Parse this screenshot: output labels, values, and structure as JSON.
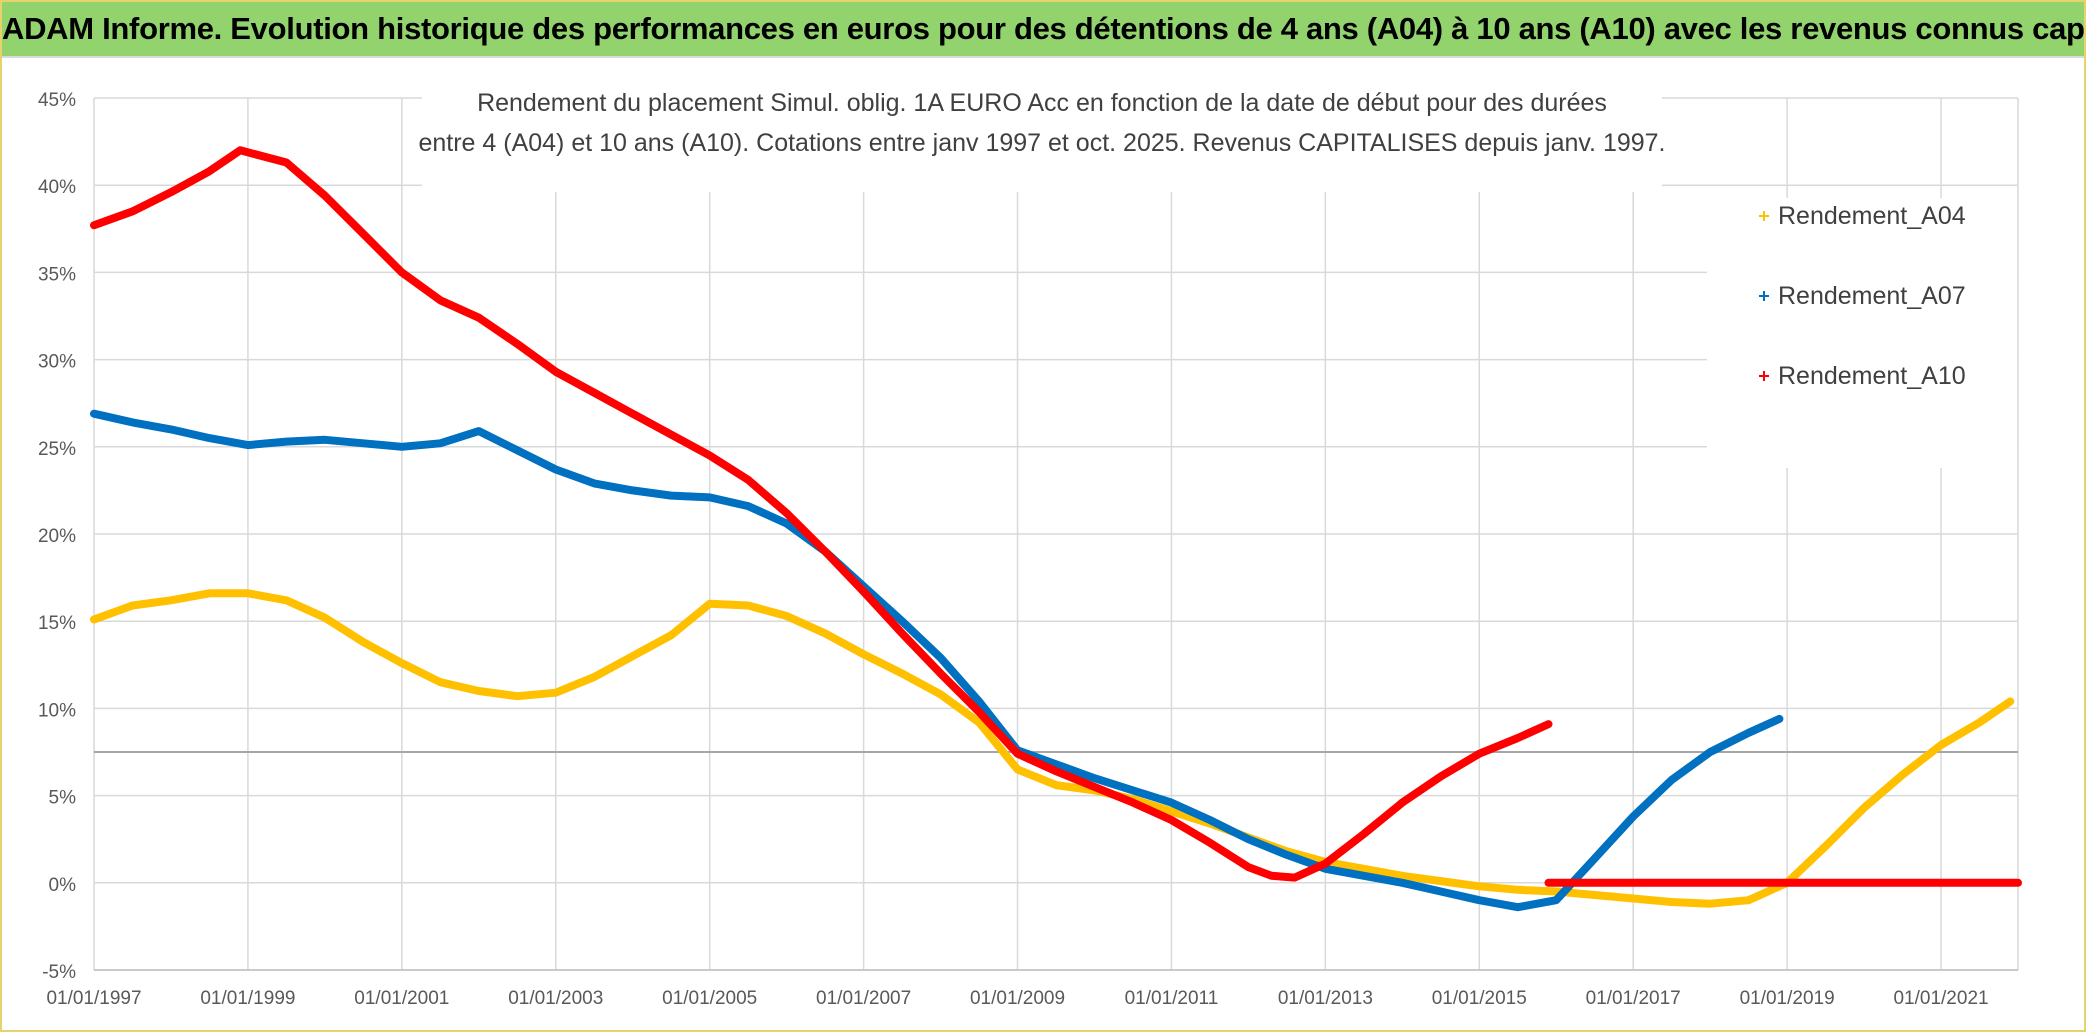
{
  "header": {
    "banner_title": "ADAM Informe. Evolution historique des performances en euros pour des détentions de 4 ans (A04) à 10 ans (A10) avec les revenus connus capitalisés"
  },
  "chart_data": {
    "type": "line",
    "title_line1": "Rendement du placement Simul. oblig. 1A EURO Acc en fonction de la date de début pour des durées",
    "title_line2": "entre 4 (A04) et 10 ans (A10). Cotations entre janv 1997 et oct. 2025. Revenus CAPITALISES depuis janv. 1997.",
    "xlabel": "",
    "ylabel": "",
    "xlim": [
      1997.0,
      2022.0
    ],
    "ylim": [
      -5,
      45
    ],
    "yticks": [
      -5,
      0,
      5,
      10,
      15,
      20,
      25,
      30,
      35,
      40,
      45
    ],
    "ytick_labels": [
      "-5%",
      "0%",
      "5%",
      "10%",
      "15%",
      "20%",
      "25%",
      "30%",
      "35%",
      "40%",
      "45%"
    ],
    "xticks": [
      1997,
      1999,
      2001,
      2003,
      2005,
      2007,
      2009,
      2011,
      2013,
      2015,
      2017,
      2019,
      2021
    ],
    "xtick_labels": [
      "01/01/1997",
      "01/01/1999",
      "01/01/2001",
      "01/01/2003",
      "01/01/2005",
      "01/01/2007",
      "01/01/2009",
      "01/01/2011",
      "01/01/2013",
      "01/01/2015",
      "01/01/2017",
      "01/01/2019",
      "01/01/2021"
    ],
    "grid": true,
    "reference_line": 7.5,
    "legend_position": "right",
    "series": [
      {
        "name": "Rendement_A04",
        "color": "#ffc000",
        "x": [
          1997.0,
          1997.5,
          1998.0,
          1998.5,
          1999.0,
          1999.5,
          2000.0,
          2000.5,
          2001.0,
          2001.5,
          2002.0,
          2002.5,
          2003.0,
          2003.5,
          2004.0,
          2004.5,
          2005.0,
          2005.5,
          2006.0,
          2006.5,
          2007.0,
          2007.5,
          2008.0,
          2008.5,
          2009.0,
          2009.5,
          2010.0,
          2010.5,
          2011.0,
          2011.5,
          2012.0,
          2012.5,
          2013.0,
          2013.5,
          2014.0,
          2014.5,
          2015.0,
          2015.5,
          2016.0,
          2016.5,
          2017.0,
          2017.5,
          2018.0,
          2018.5,
          2019.0,
          2019.5,
          2020.0,
          2020.5,
          2021.0,
          2021.5,
          2021.9
        ],
        "values": [
          15.1,
          15.9,
          16.2,
          16.6,
          16.6,
          16.2,
          15.2,
          13.8,
          12.6,
          11.5,
          11.0,
          10.7,
          10.9,
          11.8,
          13.0,
          14.2,
          16.0,
          15.9,
          15.3,
          14.3,
          13.1,
          12.0,
          10.8,
          9.2,
          6.5,
          5.6,
          5.3,
          4.8,
          4.1,
          3.4,
          2.6,
          1.8,
          1.2,
          0.8,
          0.4,
          0.1,
          -0.2,
          -0.4,
          -0.5,
          -0.7,
          -0.9,
          -1.1,
          -1.2,
          -1.0,
          0.0,
          2.1,
          4.3,
          6.2,
          7.9,
          9.2,
          10.4
        ]
      },
      {
        "name": "Rendement_A07",
        "color": "#0070c0",
        "x": [
          1997.0,
          1997.5,
          1998.0,
          1998.5,
          1999.0,
          1999.5,
          2000.0,
          2000.5,
          2001.0,
          2001.5,
          2002.0,
          2002.5,
          2003.0,
          2003.5,
          2004.0,
          2004.5,
          2005.0,
          2005.5,
          2006.0,
          2006.5,
          2007.0,
          2007.5,
          2008.0,
          2008.5,
          2009.0,
          2009.5,
          2010.0,
          2010.5,
          2011.0,
          2011.5,
          2012.0,
          2012.5,
          2013.0,
          2013.5,
          2014.0,
          2014.5,
          2015.0,
          2015.5,
          2016.0,
          2016.5,
          2017.0,
          2017.5,
          2018.0,
          2018.5,
          2018.9
        ],
        "values": [
          26.9,
          26.4,
          26.0,
          25.5,
          25.1,
          25.3,
          25.4,
          25.2,
          25.0,
          25.2,
          25.9,
          24.8,
          23.7,
          22.9,
          22.5,
          22.2,
          22.1,
          21.6,
          20.6,
          19.0,
          17.0,
          15.0,
          12.9,
          10.4,
          7.6,
          6.8,
          6.0,
          5.3,
          4.6,
          3.6,
          2.5,
          1.6,
          0.8,
          0.4,
          0.0,
          -0.5,
          -1.0,
          -1.4,
          -1.0,
          1.4,
          3.8,
          5.9,
          7.5,
          8.6,
          9.4
        ]
      },
      {
        "name": "Rendement_A10",
        "color": "#ff0000",
        "x": [
          1997.0,
          1997.5,
          1998.0,
          1998.5,
          1998.9,
          1999.5,
          2000.0,
          2000.5,
          2001.0,
          2001.5,
          2002.0,
          2002.5,
          2003.0,
          2003.5,
          2004.0,
          2004.5,
          2005.0,
          2005.5,
          2006.0,
          2006.5,
          2007.0,
          2007.5,
          2008.0,
          2008.5,
          2009.0,
          2009.5,
          2010.0,
          2010.5,
          2011.0,
          2011.5,
          2012.0,
          2012.3,
          2012.6,
          2013.0,
          2013.5,
          2014.0,
          2014.5,
          2015.0,
          2015.5,
          2015.9
        ],
        "values": [
          37.7,
          38.5,
          39.6,
          40.8,
          42.0,
          41.3,
          39.4,
          37.2,
          35.0,
          33.4,
          32.4,
          30.9,
          29.3,
          28.1,
          26.9,
          25.7,
          24.5,
          23.1,
          21.2,
          19.0,
          16.7,
          14.3,
          12.0,
          9.8,
          7.4,
          6.4,
          5.5,
          4.6,
          3.6,
          2.3,
          0.9,
          0.4,
          0.3,
          1.1,
          2.8,
          4.6,
          6.1,
          7.4,
          8.3,
          9.1
        ]
      },
      {
        "name": "",
        "color": "#ff0000",
        "x": [
          2015.9,
          2022.0
        ],
        "values": [
          0.0,
          0.0
        ]
      }
    ]
  }
}
